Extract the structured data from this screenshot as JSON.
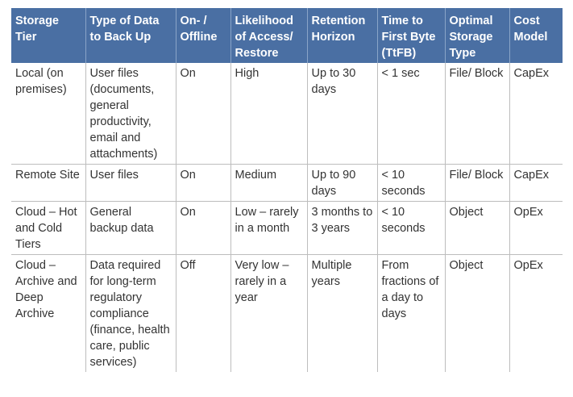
{
  "table": {
    "headers": [
      "Storage Tier",
      "Type of Data to Back Up",
      "On- / Offline",
      "Likelihood of Access/ Restore",
      "Retention Horizon",
      "Time to First Byte (TtFB)",
      "Optimal Storage Type",
      "Cost Model"
    ],
    "rows": [
      [
        "Local (on premises)",
        "User files (documents, general productivity, email and attachments)",
        "On",
        "High",
        "Up to 30 days",
        "< 1 sec",
        "File/ Block",
        "CapEx"
      ],
      [
        "Remote Site",
        "User files",
        "On",
        "Medium",
        "Up to 90 days",
        "< 10 seconds",
        "File/ Block",
        "CapEx"
      ],
      [
        "Cloud – Hot and Cold Tiers",
        "General backup data",
        "On",
        "Low – rarely in a month",
        "3 months to 3 years",
        "< 10 seconds",
        "Object",
        "OpEx"
      ],
      [
        "Cloud – Archive and Deep Archive",
        "Data required for long-term regulatory compliance (finance, health care, public services)",
        "Off",
        "Very low – rarely in a year",
        "Multiple years",
        "From fractions of a day to days",
        "Object",
        "OpEx"
      ]
    ]
  },
  "colors": {
    "header_bg": "#4a6fa3",
    "header_text": "#ffffff",
    "body_text": "#333333",
    "grid": "#bdbdbd"
  }
}
